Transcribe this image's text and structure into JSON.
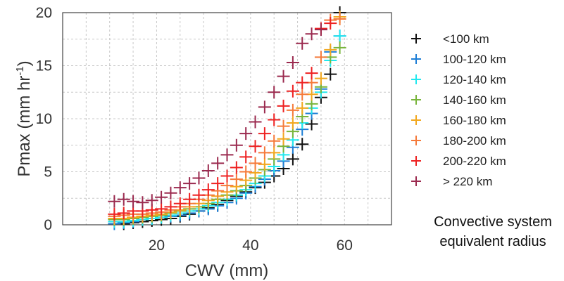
{
  "chart_data": {
    "type": "scatter",
    "xlabel": "CWV (mm)",
    "ylabel": "Pmax (mm hr",
    "ylabel_sup": "-1",
    "ylabel_close": ")",
    "xlim": [
      0,
      70
    ],
    "ylim": [
      0,
      20
    ],
    "xticks": [
      20,
      40,
      60
    ],
    "yticks": [
      0,
      5,
      10,
      15,
      20
    ],
    "grid": true,
    "legend_position": "right",
    "series": [
      {
        "name": "<100 km",
        "color": "#111111",
        "x": [
          13,
          15,
          17,
          19,
          21,
          23,
          25,
          27,
          29,
          31,
          33,
          35,
          37,
          39,
          41,
          43,
          45,
          47,
          49,
          51,
          53,
          55,
          57,
          59
        ],
        "y": [
          0.1,
          0.2,
          0.3,
          0.4,
          0.5,
          0.6,
          0.8,
          1.0,
          1.3,
          1.6,
          1.9,
          2.3,
          2.7,
          3.1,
          3.5,
          4.0,
          4.6,
          5.3,
          6.2,
          7.6,
          9.5,
          12.0,
          14.2,
          20.0
        ]
      },
      {
        "name": "100-120 km",
        "color": "#1f7fd6",
        "x": [
          11,
          13,
          15,
          17,
          19,
          21,
          23,
          25,
          27,
          29,
          31,
          33,
          35,
          37,
          39,
          41,
          43,
          45,
          47,
          49,
          51,
          53,
          55,
          57,
          59
        ],
        "y": [
          0.1,
          0.2,
          0.3,
          0.5,
          0.6,
          0.7,
          0.8,
          0.9,
          1.1,
          1.3,
          1.5,
          1.8,
          2.1,
          2.5,
          3.0,
          3.6,
          4.3,
          5.1,
          6.0,
          7.3,
          9.0,
          10.5,
          12.8,
          16.3,
          17.8
        ]
      },
      {
        "name": "120-140 km",
        "color": "#22e8ee",
        "x": [
          11,
          13,
          15,
          17,
          19,
          21,
          23,
          25,
          27,
          29,
          31,
          33,
          35,
          37,
          39,
          41,
          43,
          45,
          47,
          49,
          51,
          53,
          55,
          57,
          59
        ],
        "y": [
          0.3,
          0.3,
          0.4,
          0.5,
          0.6,
          0.7,
          0.9,
          1.1,
          1.3,
          1.5,
          1.8,
          2.1,
          2.4,
          2.8,
          3.3,
          3.9,
          4.6,
          5.5,
          6.6,
          8.0,
          9.6,
          11.0,
          12.5,
          15.5,
          17.8
        ]
      },
      {
        "name": "140-160 km",
        "color": "#79b53c",
        "x": [
          11,
          13,
          15,
          17,
          19,
          21,
          23,
          25,
          27,
          29,
          31,
          33,
          35,
          37,
          39,
          41,
          43,
          45,
          47,
          49,
          51,
          53,
          55,
          57,
          59
        ],
        "y": [
          0.5,
          0.5,
          0.6,
          0.7,
          0.8,
          0.9,
          1.1,
          1.3,
          1.5,
          1.7,
          2.0,
          2.4,
          2.8,
          3.2,
          3.7,
          4.4,
          5.2,
          6.2,
          7.4,
          8.8,
          10.2,
          11.4,
          13.0,
          15.8,
          16.7
        ]
      },
      {
        "name": "160-180 km",
        "color": "#f2a81f",
        "x": [
          11,
          13,
          15,
          17,
          19,
          21,
          23,
          25,
          27,
          29,
          31,
          33,
          35,
          37,
          39,
          41,
          43,
          45,
          47,
          49,
          51,
          53,
          55,
          57,
          59
        ],
        "y": [
          0.6,
          0.6,
          0.7,
          0.8,
          0.9,
          1.0,
          1.2,
          1.4,
          1.7,
          2.0,
          2.3,
          2.7,
          3.1,
          3.6,
          4.2,
          4.9,
          5.7,
          6.8,
          8.1,
          9.6,
          11.0,
          12.3,
          13.8,
          16.5,
          19.6
        ]
      },
      {
        "name": "180-200 km",
        "color": "#f57a3a",
        "x": [
          11,
          13,
          15,
          17,
          19,
          21,
          23,
          25,
          27,
          29,
          31,
          33,
          35,
          37,
          39,
          41,
          43,
          45,
          47,
          49,
          51,
          53,
          55,
          57,
          59
        ],
        "y": [
          0.8,
          0.9,
          1.0,
          1.0,
          1.1,
          1.2,
          1.4,
          1.7,
          2.0,
          2.4,
          2.8,
          3.2,
          3.7,
          4.3,
          5.0,
          5.8,
          6.8,
          7.9,
          9.3,
          10.8,
          12.3,
          13.4,
          15.8,
          19.3,
          19.4
        ]
      },
      {
        "name": "200-220 km",
        "color": "#ee2222",
        "x": [
          11,
          13,
          15,
          17,
          19,
          21,
          23,
          25,
          27,
          29,
          31,
          33,
          35,
          37,
          39,
          41,
          43,
          45,
          47,
          49,
          51,
          53,
          55,
          57
        ],
        "y": [
          1.0,
          1.1,
          1.3,
          1.3,
          1.4,
          1.5,
          1.7,
          2.0,
          2.4,
          2.8,
          3.3,
          3.9,
          4.6,
          5.4,
          6.4,
          7.4,
          8.6,
          9.9,
          11.2,
          12.6,
          13.4,
          14.3,
          18.5,
          19.0
        ]
      },
      {
        "name": "> 220 km",
        "color": "#9b2a4f",
        "x": [
          11,
          13,
          15,
          17,
          19,
          21,
          23,
          25,
          27,
          29,
          31,
          33,
          35,
          37,
          39,
          41,
          43,
          45,
          47,
          49,
          51,
          53,
          55
        ],
        "y": [
          2.2,
          2.4,
          2.2,
          2.1,
          2.3,
          2.6,
          3.0,
          3.5,
          3.9,
          4.4,
          5.1,
          5.8,
          6.6,
          7.5,
          8.6,
          9.7,
          11.1,
          12.5,
          14.0,
          15.3,
          17.1,
          18.0,
          18.4
        ]
      }
    ]
  },
  "caption": {
    "line1": "Convective system",
    "line2": "equivalent radius"
  }
}
